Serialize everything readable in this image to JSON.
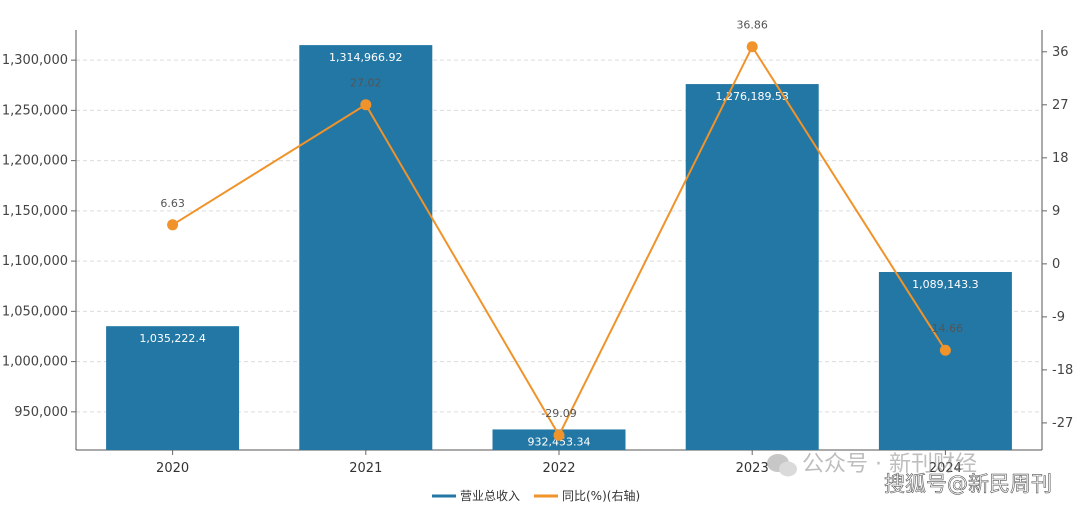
{
  "chart_data": {
    "type": "bar",
    "categories": [
      "2020",
      "2021",
      "2022",
      "2023",
      "2024"
    ],
    "series": [
      {
        "name": "营业总收入",
        "type": "bar",
        "axis": "left",
        "color": "#2277a4",
        "values": [
          1035222.4,
          1314966.92,
          932453.34,
          1276189.53,
          1089143.3
        ],
        "labels": [
          "1,035,222.4",
          "1,314,966.92",
          "932,453.34",
          "1,276,189.53",
          "1,089,143.3"
        ]
      },
      {
        "name": "同比(%)(右轴)",
        "type": "line",
        "axis": "right",
        "color": "#f0932a",
        "values": [
          6.63,
          27.02,
          -29.09,
          36.86,
          -14.66
        ],
        "labels": [
          "6.63",
          "27.02",
          "-29.09",
          "36.86",
          "-14.66"
        ]
      }
    ],
    "y_left": {
      "ylim": [
        912000,
        1330000
      ],
      "ticks": [
        950000,
        1000000,
        1050000,
        1100000,
        1150000,
        1200000,
        1250000,
        1300000
      ],
      "tick_labels": [
        "950,000",
        "1,000,000",
        "1,050,000",
        "1,100,000",
        "1,150,000",
        "1,200,000",
        "1,250,000",
        "1,300,000"
      ]
    },
    "y_right": {
      "ylim": [
        -31.6,
        39.7
      ],
      "ticks": [
        -27,
        -18,
        -9,
        0,
        9,
        18,
        27,
        36
      ],
      "tick_labels": [
        "-27",
        "-18",
        "-9",
        "0",
        "9",
        "18",
        "27",
        "36"
      ]
    },
    "grid": true,
    "legend_position": "bottom-center"
  },
  "watermark": {
    "wechat": "公众号 · 新刊财经",
    "sohu": "搜狐号@新民周刊"
  }
}
